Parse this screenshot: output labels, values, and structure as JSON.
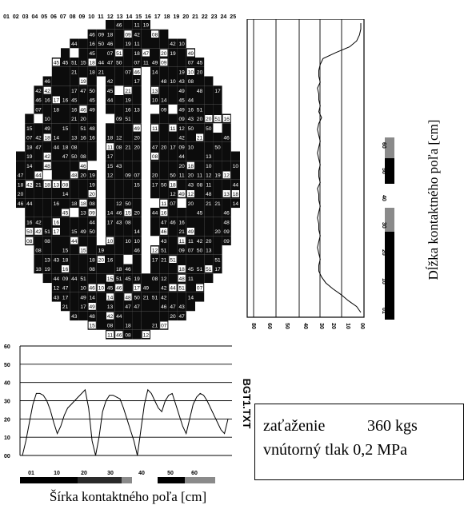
{
  "column_numbers": [
    "01",
    "02",
    "03",
    "04",
    "05",
    "06",
    "07",
    "08",
    "09",
    "10",
    "11",
    "12",
    "13",
    "14",
    "15",
    "16",
    "17",
    "18",
    "19",
    "20",
    "21",
    "22",
    "23",
    "24",
    "25"
  ],
  "footprint_cell_labels": [
    "14",
    "15",
    "16",
    "17",
    "18",
    "19",
    "20",
    "21",
    "42",
    "43",
    "44",
    "45",
    "46",
    "47",
    "48",
    "49",
    "50",
    "51",
    "10",
    "11",
    "12",
    "13",
    "07",
    "08",
    "09"
  ],
  "info": {
    "load_label": "zaťaženie",
    "load_value": "360 kgs",
    "pressure_text": "vnútorný tlak 0,2 MPa"
  },
  "file_label": "BGT1.TXT",
  "labels": {
    "right_axis": "Dĺžka kontaktného poľa [cm]",
    "bottom_axis": "Šírka kontaktného poľa [cm]"
  },
  "legend": {
    "ticks": [
      "01",
      "10",
      "20",
      "30",
      "40",
      "50",
      "60"
    ],
    "colors": [
      "#000000",
      "#2a2a2a",
      "#8a8a8a",
      "#ffffff"
    ]
  },
  "chart_data": [
    {
      "type": "line",
      "orientation": "vertical",
      "title": "",
      "xlabel": "",
      "ylabel": "",
      "xlim": [
        80,
        0
      ],
      "x_ticks": [
        "80",
        "60",
        "50",
        "40",
        "30",
        "20",
        "10",
        "00"
      ],
      "series": [
        {
          "y": [
            0,
            1,
            2,
            3,
            4,
            5,
            6,
            7,
            8,
            9,
            10,
            11,
            12,
            13,
            14,
            15,
            16,
            17,
            18,
            19,
            20,
            21,
            22,
            23,
            24,
            25,
            26,
            27,
            28,
            29,
            30,
            31,
            32,
            33,
            34,
            35,
            36,
            37,
            38,
            39,
            40,
            41,
            42,
            43,
            44,
            45,
            46,
            47,
            48,
            49
          ],
          "values": [
            0,
            0,
            1,
            3,
            8,
            18,
            27,
            29,
            30,
            30,
            29,
            31,
            30,
            30,
            29,
            30,
            28,
            30,
            31,
            30,
            29,
            30,
            31,
            30,
            29,
            30,
            30,
            29,
            31,
            30,
            30,
            29,
            30,
            31,
            30,
            30,
            29,
            30,
            31,
            30,
            29,
            30,
            30,
            28,
            25,
            20,
            14,
            9,
            3,
            0
          ]
        }
      ]
    },
    {
      "type": "line",
      "title": "",
      "xlabel": "",
      "ylabel": "",
      "ylim": [
        0,
        60
      ],
      "y_ticks": [
        "00",
        "10",
        "20",
        "30",
        "40",
        "50",
        "60"
      ],
      "series": [
        {
          "x": [
            0,
            1,
            2,
            3,
            4,
            5,
            6,
            7,
            8,
            9,
            10,
            11,
            12,
            13,
            14,
            15,
            16,
            17,
            18,
            19,
            20,
            21,
            22,
            23,
            24,
            25,
            26,
            27,
            28,
            29,
            30,
            31,
            32,
            33,
            34,
            35,
            36,
            37,
            38,
            39,
            40,
            41,
            42,
            43,
            44,
            45,
            46,
            47,
            48,
            49,
            50,
            51,
            52,
            53,
            54,
            55,
            56,
            57,
            58,
            59
          ],
          "values": [
            0,
            8,
            18,
            28,
            34,
            34,
            33,
            30,
            25,
            18,
            12,
            16,
            22,
            26,
            28,
            30,
            32,
            34,
            36,
            26,
            8,
            0,
            10,
            24,
            30,
            33,
            33,
            32,
            31,
            26,
            20,
            14,
            8,
            0,
            14,
            28,
            36,
            34,
            30,
            26,
            24,
            30,
            33,
            34,
            28,
            22,
            16,
            12,
            20,
            28,
            32,
            34,
            33,
            30,
            26,
            22,
            18,
            14,
            12,
            20
          ]
        }
      ]
    }
  ]
}
